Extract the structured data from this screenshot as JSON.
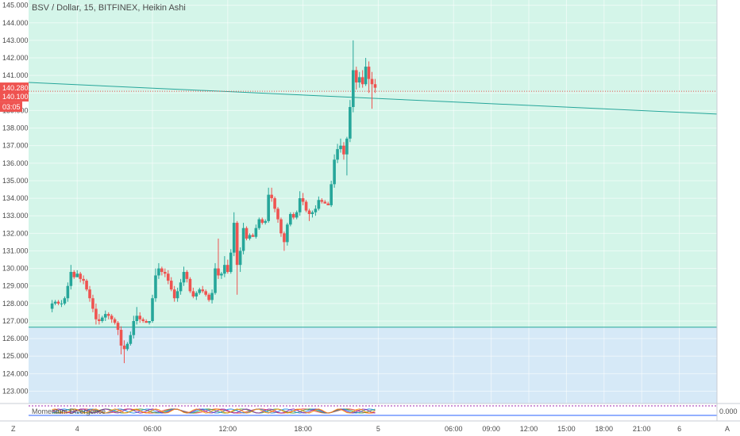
{
  "header": {
    "symbol": "BSV / Dollar",
    "interval": "15",
    "exchange": "BITFINEX",
    "chart_style": "Heikin Ashi"
  },
  "price_axis": {
    "current_price_label": "140.280",
    "price_line_label": "140.100",
    "countdown_label": "03:05",
    "current_price_color": "#ef5350",
    "indicator_zero_label": "0.000"
  },
  "corner_labels": {
    "left": "Z",
    "right": "A"
  },
  "indicator_label": "Momentum Divergence",
  "colors": {
    "up": "#26a69a",
    "down": "#ef5350",
    "zone_upper": "#d4f5e9",
    "zone_lower": "#d6e9f7",
    "trendline": "#26a69a"
  },
  "chart_data": {
    "type": "candlestick",
    "title": "BSV / Dollar, 15, BITFINEX, Heikin Ashi",
    "ylim": [
      122.3,
      145.3
    ],
    "y_ticks": [
      "123.000",
      "124.000",
      "125.000",
      "126.000",
      "127.000",
      "128.000",
      "129.000",
      "130.000",
      "131.000",
      "132.000",
      "133.000",
      "134.000",
      "135.000",
      "136.000",
      "137.000",
      "138.000",
      "139.000",
      "140.000",
      "141.000",
      "142.000",
      "143.000",
      "144.000",
      "145.000"
    ],
    "x_labels": [
      {
        "label": "4",
        "t": 8
      },
      {
        "label": "06:00",
        "t": 32
      },
      {
        "label": "12:00",
        "t": 56
      },
      {
        "label": "18:00",
        "t": 80
      },
      {
        "label": "5",
        "t": 104
      },
      {
        "label": "06:00",
        "t": 128
      },
      {
        "label": "09:00",
        "t": 140
      },
      {
        "label": "12:00",
        "t": 152
      },
      {
        "label": "15:00",
        "t": 164
      },
      {
        "label": "18:00",
        "t": 176
      },
      {
        "label": "21:00",
        "t": 188
      },
      {
        "label": "6",
        "t": 200
      }
    ],
    "x_range": [
      -7.5,
      212
    ],
    "ohlc": [
      [
        127.7,
        128.2,
        127.5,
        128.0
      ],
      [
        128.0,
        128.2,
        127.9,
        128.1
      ],
      [
        128.1,
        128.2,
        127.9,
        128.0
      ],
      [
        128.0,
        128.2,
        127.8,
        128.0
      ],
      [
        128.0,
        128.4,
        127.9,
        128.3
      ],
      [
        128.3,
        129.2,
        128.1,
        129.0
      ],
      [
        129.0,
        130.2,
        128.8,
        129.8
      ],
      [
        129.8,
        129.9,
        129.4,
        129.5
      ],
      [
        129.5,
        129.9,
        129.5,
        129.7
      ],
      [
        129.7,
        129.8,
        129.2,
        129.4
      ],
      [
        129.4,
        129.6,
        129.1,
        129.3
      ],
      [
        129.3,
        129.4,
        128.7,
        128.8
      ],
      [
        128.8,
        129.0,
        128.1,
        128.3
      ],
      [
        128.3,
        128.5,
        127.5,
        127.7
      ],
      [
        127.7,
        128.0,
        126.8,
        127.1
      ],
      [
        127.1,
        127.4,
        126.8,
        127.0
      ],
      [
        127.0,
        127.3,
        126.9,
        127.2
      ],
      [
        127.2,
        127.6,
        127.0,
        127.4
      ],
      [
        127.4,
        127.5,
        127.1,
        127.3
      ],
      [
        127.3,
        127.4,
        126.9,
        127.1
      ],
      [
        127.1,
        127.2,
        126.8,
        126.9
      ],
      [
        126.9,
        127.0,
        126.2,
        126.5
      ],
      [
        126.5,
        126.7,
        125.1,
        125.6
      ],
      [
        125.6,
        125.9,
        124.6,
        125.4
      ],
      [
        125.4,
        125.8,
        125.3,
        125.7
      ],
      [
        125.7,
        126.4,
        125.6,
        126.2
      ],
      [
        126.2,
        127.3,
        126.0,
        127.0
      ],
      [
        127.0,
        127.8,
        126.8,
        127.3
      ],
      [
        127.3,
        127.5,
        126.9,
        127.1
      ],
      [
        127.1,
        127.2,
        126.9,
        127.0
      ],
      [
        127.0,
        127.1,
        126.9,
        126.9
      ],
      [
        126.9,
        127.0,
        126.8,
        127.0
      ],
      [
        127.0,
        128.5,
        126.9,
        128.3
      ],
      [
        128.3,
        130.0,
        128.1,
        129.6
      ],
      [
        129.6,
        130.3,
        129.4,
        130.0
      ],
      [
        130.0,
        130.1,
        129.6,
        129.8
      ],
      [
        129.8,
        130.0,
        129.5,
        129.7
      ],
      [
        129.7,
        129.9,
        129.1,
        129.3
      ],
      [
        129.3,
        129.5,
        128.7,
        128.8
      ],
      [
        128.8,
        129.0,
        128.1,
        128.3
      ],
      [
        128.3,
        128.9,
        128.1,
        128.7
      ],
      [
        128.7,
        129.4,
        128.5,
        129.2
      ],
      [
        129.2,
        130.1,
        129.0,
        129.8
      ],
      [
        129.8,
        129.9,
        129.2,
        129.4
      ],
      [
        129.4,
        129.5,
        128.6,
        128.7
      ],
      [
        128.7,
        128.9,
        128.3,
        128.4
      ],
      [
        128.4,
        128.7,
        128.2,
        128.6
      ],
      [
        128.6,
        128.9,
        128.5,
        128.8
      ],
      [
        128.8,
        129.0,
        128.6,
        128.7
      ],
      [
        128.7,
        128.8,
        128.4,
        128.5
      ],
      [
        128.5,
        128.6,
        128.1,
        128.2
      ],
      [
        128.2,
        128.8,
        128.0,
        128.6
      ],
      [
        128.6,
        130.3,
        128.5,
        130.0
      ],
      [
        130.0,
        131.7,
        129.4,
        129.6
      ],
      [
        129.6,
        129.8,
        129.4,
        129.7
      ],
      [
        129.7,
        130.7,
        129.5,
        130.2
      ],
      [
        130.2,
        130.5,
        129.7,
        129.8
      ],
      [
        129.8,
        131.1,
        129.7,
        130.9
      ],
      [
        130.9,
        133.2,
        130.7,
        132.6
      ],
      [
        132.6,
        132.7,
        128.5,
        130.2
      ],
      [
        130.2,
        131.2,
        129.8,
        131.0
      ],
      [
        131.0,
        132.6,
        130.8,
        132.3
      ],
      [
        132.3,
        132.4,
        131.6,
        131.7
      ],
      [
        131.7,
        132.0,
        131.6,
        131.9
      ],
      [
        131.9,
        132.0,
        131.8,
        131.8
      ],
      [
        131.8,
        132.5,
        131.7,
        132.3
      ],
      [
        132.3,
        132.9,
        132.2,
        132.8
      ],
      [
        132.8,
        132.9,
        132.5,
        132.6
      ],
      [
        132.6,
        132.8,
        132.5,
        132.7
      ],
      [
        132.7,
        134.6,
        132.6,
        134.2
      ],
      [
        134.2,
        134.6,
        133.8,
        134.0
      ],
      [
        134.0,
        134.1,
        133.2,
        133.4
      ],
      [
        133.4,
        133.5,
        132.6,
        132.8
      ],
      [
        132.8,
        132.9,
        131.8,
        132.0
      ],
      [
        132.0,
        132.1,
        131.0,
        131.5
      ],
      [
        131.5,
        132.6,
        131.3,
        132.5
      ],
      [
        132.5,
        133.2,
        132.4,
        133.1
      ],
      [
        133.1,
        133.2,
        132.8,
        132.9
      ],
      [
        132.9,
        133.3,
        132.8,
        133.2
      ],
      [
        133.2,
        134.4,
        133.0,
        134.0
      ],
      [
        134.0,
        134.3,
        133.6,
        133.8
      ],
      [
        133.8,
        133.9,
        133.2,
        133.3
      ],
      [
        133.3,
        133.4,
        132.7,
        133.1
      ],
      [
        133.1,
        133.3,
        132.9,
        133.2
      ],
      [
        133.2,
        133.6,
        133.0,
        133.4
      ],
      [
        133.4,
        134.1,
        133.3,
        133.9
      ],
      [
        133.9,
        134.0,
        133.7,
        133.8
      ],
      [
        133.8,
        133.9,
        133.7,
        133.7
      ],
      [
        133.7,
        133.8,
        133.6,
        133.6
      ],
      [
        133.6,
        135.0,
        133.5,
        134.8
      ],
      [
        134.8,
        136.5,
        134.6,
        136.2
      ],
      [
        136.2,
        137.1,
        136.0,
        136.8
      ],
      [
        136.8,
        137.4,
        136.6,
        137.0
      ],
      [
        137.0,
        137.2,
        136.2,
        136.5
      ],
      [
        136.5,
        137.5,
        135.3,
        137.4
      ],
      [
        137.4,
        139.6,
        137.2,
        139.2
      ],
      [
        139.2,
        143.0,
        138.9,
        141.3
      ],
      [
        141.3,
        141.5,
        140.2,
        140.6
      ],
      [
        140.6,
        141.2,
        140.3,
        140.9
      ],
      [
        140.9,
        141.3,
        140.3,
        140.5
      ],
      [
        140.5,
        142.0,
        140.4,
        141.5
      ],
      [
        141.5,
        141.8,
        140.0,
        140.8
      ],
      [
        140.8,
        141.2,
        139.1,
        140.5
      ],
      [
        140.5,
        140.8,
        140.0,
        140.3
      ]
    ],
    "trendline": [
      [
        -7.5,
        140.6
      ],
      [
        212,
        138.8
      ]
    ],
    "support_level": 126.65
  }
}
